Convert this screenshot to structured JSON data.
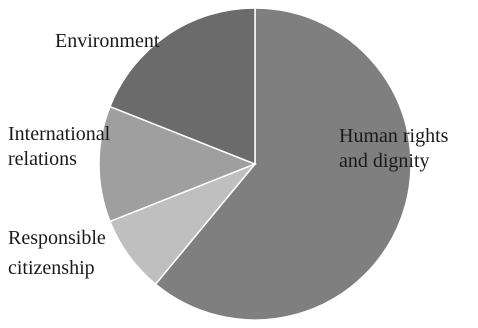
{
  "chart_data": {
    "type": "pie",
    "title": "",
    "slices": [
      {
        "label": [
          "Human rights",
          "and dignity"
        ],
        "value": 61,
        "color": "#7f7f7f"
      },
      {
        "label": [
          "Responsible",
          "citizenship"
        ],
        "value": 8,
        "color": "#bfbfbf"
      },
      {
        "label": [
          "International",
          "relations"
        ],
        "value": 12,
        "color": "#9f9f9f"
      },
      {
        "label": [
          "Environment"
        ],
        "value": 19,
        "color": "#6b6b6b"
      }
    ],
    "start_angle_deg": 0,
    "direction": "clockwise",
    "legend": "none"
  }
}
